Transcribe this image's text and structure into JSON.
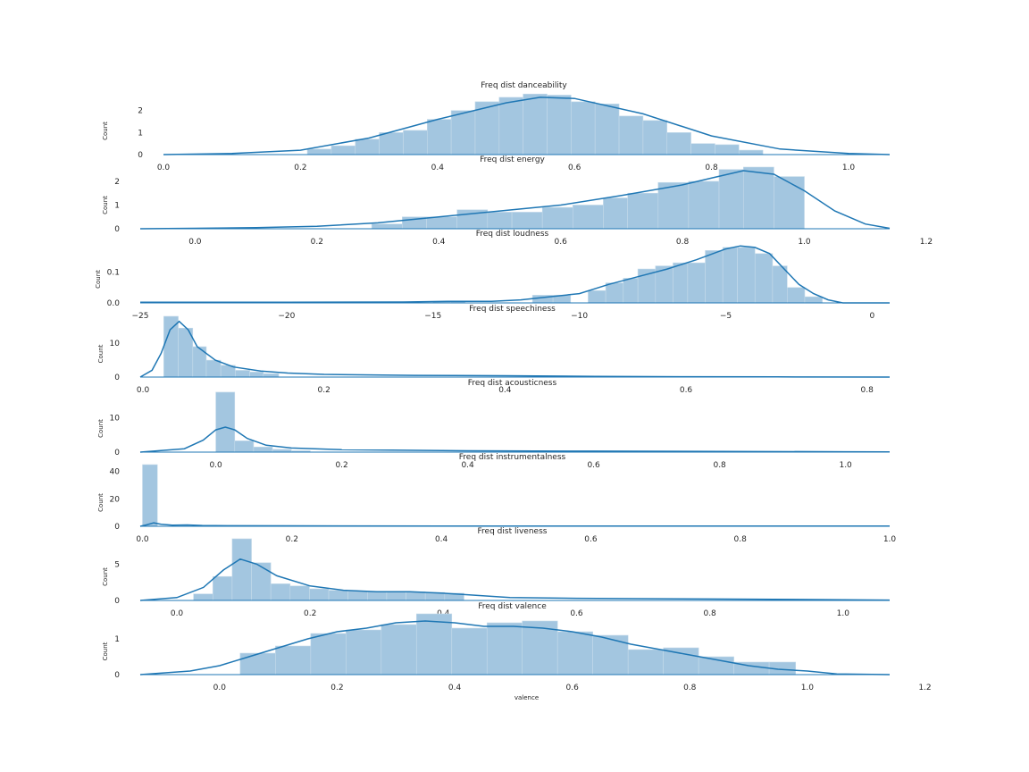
{
  "colors": {
    "bar": "#a3c6e0",
    "bar_edge": "#c6dbea",
    "kde": "#1f77b4",
    "text": "#262626",
    "background": "#ffffff"
  },
  "chart_data": [
    {
      "type": "histogram",
      "title": "Freq dist danceability",
      "ylabel": "Count",
      "xlim": [
        0.0,
        1.06
      ],
      "ylim": [
        0,
        2.8
      ],
      "xticks": [
        0.0,
        0.2,
        0.4,
        0.6,
        0.8,
        1.0
      ],
      "xtick_labels": [
        "0.0",
        "0.2",
        "0.4",
        "0.6",
        "0.8",
        "1.0"
      ],
      "yticks": [
        0,
        1,
        2
      ],
      "ytick_labels": [
        "0",
        "1",
        "2"
      ],
      "bins": [
        [
          0.21,
          0.245,
          0.25
        ],
        [
          0.245,
          0.28,
          0.4
        ],
        [
          0.28,
          0.315,
          0.7
        ],
        [
          0.315,
          0.35,
          1.0
        ],
        [
          0.35,
          0.385,
          1.1
        ],
        [
          0.385,
          0.42,
          1.6
        ],
        [
          0.42,
          0.455,
          2.0
        ],
        [
          0.455,
          0.49,
          2.4
        ],
        [
          0.49,
          0.525,
          2.6
        ],
        [
          0.525,
          0.56,
          2.75
        ],
        [
          0.56,
          0.595,
          2.7
        ],
        [
          0.595,
          0.63,
          2.4
        ],
        [
          0.63,
          0.665,
          2.3
        ],
        [
          0.665,
          0.7,
          1.75
        ],
        [
          0.7,
          0.735,
          1.55
        ],
        [
          0.735,
          0.77,
          1.0
        ],
        [
          0.77,
          0.805,
          0.5
        ],
        [
          0.805,
          0.84,
          0.45
        ],
        [
          0.84,
          0.875,
          0.2
        ]
      ],
      "kde": [
        [
          0.0,
          0.0
        ],
        [
          0.1,
          0.05
        ],
        [
          0.2,
          0.2
        ],
        [
          0.3,
          0.75
        ],
        [
          0.4,
          1.6
        ],
        [
          0.5,
          2.35
        ],
        [
          0.55,
          2.6
        ],
        [
          0.6,
          2.55
        ],
        [
          0.7,
          1.85
        ],
        [
          0.8,
          0.85
        ],
        [
          0.9,
          0.25
        ],
        [
          1.0,
          0.05
        ],
        [
          1.06,
          0.0
        ]
      ]
    },
    {
      "type": "histogram",
      "title": "Freq dist energy",
      "ylabel": "Count",
      "xlim": [
        -0.09,
        1.14
      ],
      "ylim": [
        0,
        2.6
      ],
      "xticks": [
        0.0,
        0.2,
        0.4,
        0.6,
        0.8,
        1.0,
        1.2
      ],
      "xtick_labels": [
        "0.0",
        "0.2",
        "0.4",
        "0.6",
        "0.8",
        "1.0",
        "1.2"
      ],
      "yticks": [
        0,
        1,
        2
      ],
      "ytick_labels": [
        "0",
        "1",
        "2"
      ],
      "bins": [
        [
          0.29,
          0.34,
          0.2
        ],
        [
          0.34,
          0.38,
          0.5
        ],
        [
          0.38,
          0.43,
          0.5
        ],
        [
          0.43,
          0.48,
          0.8
        ],
        [
          0.48,
          0.52,
          0.7
        ],
        [
          0.52,
          0.57,
          0.7
        ],
        [
          0.57,
          0.62,
          0.9
        ],
        [
          0.62,
          0.67,
          1.0
        ],
        [
          0.67,
          0.71,
          1.3
        ],
        [
          0.71,
          0.76,
          1.5
        ],
        [
          0.76,
          0.81,
          1.95
        ],
        [
          0.81,
          0.86,
          2.0
        ],
        [
          0.86,
          0.9,
          2.5
        ],
        [
          0.9,
          0.95,
          2.6
        ],
        [
          0.95,
          1.0,
          2.2
        ]
      ],
      "kde": [
        [
          -0.09,
          0.0
        ],
        [
          0.0,
          0.02
        ],
        [
          0.1,
          0.05
        ],
        [
          0.2,
          0.1
        ],
        [
          0.3,
          0.25
        ],
        [
          0.4,
          0.5
        ],
        [
          0.5,
          0.75
        ],
        [
          0.6,
          1.0
        ],
        [
          0.7,
          1.4
        ],
        [
          0.8,
          1.85
        ],
        [
          0.85,
          2.15
        ],
        [
          0.9,
          2.45
        ],
        [
          0.95,
          2.3
        ],
        [
          1.0,
          1.6
        ],
        [
          1.05,
          0.75
        ],
        [
          1.1,
          0.2
        ],
        [
          1.14,
          0.02
        ]
      ]
    },
    {
      "type": "histogram",
      "title": "Freq dist loudness",
      "ylabel": "Count",
      "xlim": [
        -25,
        0.6
      ],
      "ylim": [
        0,
        0.2
      ],
      "xticks": [
        -25,
        -20,
        -15,
        -10,
        -5,
        0
      ],
      "xtick_labels": [
        "−25",
        "−20",
        "−15",
        "−10",
        "−5",
        "0"
      ],
      "yticks": [
        0.0,
        0.1
      ],
      "ytick_labels": [
        "0.0",
        "0.1"
      ],
      "bins": [
        [
          -15.0,
          -14.4,
          0.005
        ],
        [
          -14.4,
          -13.9,
          0.005
        ],
        [
          -11.6,
          -10.9,
          0.025
        ],
        [
          -10.9,
          -10.3,
          0.025
        ],
        [
          -9.7,
          -9.1,
          0.04
        ],
        [
          -9.1,
          -8.5,
          0.065
        ],
        [
          -8.5,
          -8.0,
          0.08
        ],
        [
          -8.0,
          -7.4,
          0.11
        ],
        [
          -7.4,
          -6.8,
          0.12
        ],
        [
          -6.8,
          -6.3,
          0.13
        ],
        [
          -6.3,
          -5.7,
          0.13
        ],
        [
          -5.7,
          -5.1,
          0.17
        ],
        [
          -5.1,
          -4.6,
          0.18
        ],
        [
          -4.6,
          -4.0,
          0.18
        ],
        [
          -4.0,
          -3.4,
          0.16
        ],
        [
          -3.4,
          -2.9,
          0.12
        ],
        [
          -2.9,
          -2.3,
          0.05
        ],
        [
          -2.3,
          -1.7,
          0.02
        ]
      ],
      "kde": [
        [
          -25,
          0.002
        ],
        [
          -20,
          0.002
        ],
        [
          -16,
          0.003
        ],
        [
          -14.5,
          0.005
        ],
        [
          -13,
          0.005
        ],
        [
          -12,
          0.01
        ],
        [
          -11,
          0.02
        ],
        [
          -10,
          0.03
        ],
        [
          -9,
          0.06
        ],
        [
          -8,
          0.085
        ],
        [
          -7,
          0.11
        ],
        [
          -6,
          0.14
        ],
        [
          -5,
          0.175
        ],
        [
          -4.5,
          0.185
        ],
        [
          -4,
          0.18
        ],
        [
          -3.5,
          0.16
        ],
        [
          -3,
          0.11
        ],
        [
          -2.5,
          0.06
        ],
        [
          -2,
          0.03
        ],
        [
          -1.5,
          0.01
        ],
        [
          -1,
          0.0
        ],
        [
          0.6,
          0.0
        ]
      ]
    },
    {
      "type": "histogram",
      "title": "Freq dist speechiness",
      "ylabel": "Count",
      "xlim": [
        -0.003,
        0.825
      ],
      "ylim": [
        0,
        18
      ],
      "xticks": [
        0.0,
        0.2,
        0.4,
        0.6,
        0.8
      ],
      "xtick_labels": [
        "0.0",
        "0.2",
        "0.4",
        "0.6",
        "0.8"
      ],
      "yticks": [
        0,
        10
      ],
      "ytick_labels": [
        "0",
        "10"
      ],
      "bins": [
        [
          0.023,
          0.039,
          18.0
        ],
        [
          0.039,
          0.055,
          14.5
        ],
        [
          0.055,
          0.07,
          9.0
        ],
        [
          0.07,
          0.086,
          5.0
        ],
        [
          0.086,
          0.102,
          3.5
        ],
        [
          0.102,
          0.118,
          2.0
        ],
        [
          0.118,
          0.133,
          1.5
        ],
        [
          0.133,
          0.15,
          1.0
        ]
      ],
      "kde": [
        [
          -0.003,
          0.0
        ],
        [
          0.01,
          2.0
        ],
        [
          0.02,
          7.0
        ],
        [
          0.03,
          14.0
        ],
        [
          0.04,
          16.5
        ],
        [
          0.05,
          14.0
        ],
        [
          0.06,
          9.0
        ],
        [
          0.08,
          5.0
        ],
        [
          0.1,
          3.0
        ],
        [
          0.13,
          1.8
        ],
        [
          0.16,
          1.2
        ],
        [
          0.2,
          0.8
        ],
        [
          0.3,
          0.5
        ],
        [
          0.4,
          0.4
        ],
        [
          0.5,
          0.2
        ],
        [
          0.6,
          0.1
        ],
        [
          0.7,
          0.05
        ],
        [
          0.825,
          0.0
        ]
      ]
    },
    {
      "type": "histogram",
      "title": "Freq dist acousticness",
      "ylabel": "Count",
      "xlim": [
        -0.12,
        1.07
      ],
      "ylim": [
        0,
        18
      ],
      "xticks": [
        0.0,
        0.2,
        0.4,
        0.6,
        0.8,
        1.0
      ],
      "xtick_labels": [
        "0.0",
        "0.2",
        "0.4",
        "0.6",
        "0.8",
        "1.0"
      ],
      "yticks": [
        0,
        10
      ],
      "ytick_labels": [
        "0",
        "10"
      ],
      "bins": [
        [
          0.0,
          0.03,
          17.5
        ],
        [
          0.03,
          0.06,
          3.3
        ],
        [
          0.06,
          0.09,
          1.5
        ],
        [
          0.09,
          0.12,
          0.8
        ],
        [
          0.12,
          0.15,
          0.4
        ]
      ],
      "kde": [
        [
          -0.12,
          0.0
        ],
        [
          -0.05,
          1.0
        ],
        [
          -0.02,
          3.5
        ],
        [
          0.0,
          6.5
        ],
        [
          0.015,
          7.3
        ],
        [
          0.03,
          6.5
        ],
        [
          0.05,
          4.0
        ],
        [
          0.08,
          2.0
        ],
        [
          0.12,
          1.2
        ],
        [
          0.2,
          0.7
        ],
        [
          0.4,
          0.4
        ],
        [
          0.6,
          0.3
        ],
        [
          0.8,
          0.2
        ],
        [
          1.0,
          0.1
        ],
        [
          1.07,
          0.05
        ]
      ]
    },
    {
      "type": "histogram",
      "title": "Freq dist instrumentalness",
      "ylabel": "Count",
      "xlim": [
        -0.003,
        1.0
      ],
      "ylim": [
        0,
        45
      ],
      "xticks": [
        0.0,
        0.2,
        0.4,
        0.6,
        0.8,
        1.0
      ],
      "xtick_labels": [
        "0.0",
        "0.2",
        "0.4",
        "0.6",
        "0.8",
        "1.0"
      ],
      "yticks": [
        0,
        20,
        40
      ],
      "ytick_labels": [
        "0",
        "20",
        "40"
      ],
      "bins": [
        [
          0.0,
          0.02,
          45.0
        ]
      ],
      "kde": [
        [
          -0.003,
          0.0
        ],
        [
          0.005,
          1.0
        ],
        [
          0.015,
          2.5
        ],
        [
          0.025,
          1.5
        ],
        [
          0.04,
          0.8
        ],
        [
          0.06,
          1.0
        ],
        [
          0.08,
          0.6
        ],
        [
          0.12,
          0.4
        ],
        [
          0.2,
          0.3
        ],
        [
          0.4,
          0.2
        ],
        [
          0.6,
          0.2
        ],
        [
          0.8,
          0.15
        ],
        [
          1.0,
          0.1
        ]
      ]
    },
    {
      "type": "histogram",
      "title": "Freq dist liveness",
      "ylabel": "Count",
      "xlim": [
        -0.055,
        1.07
      ],
      "ylim": [
        0,
        8.5
      ],
      "xticks": [
        0.0,
        0.2,
        0.4,
        0.6,
        0.8,
        1.0
      ],
      "xtick_labels": [
        "0.0",
        "0.2",
        "0.4",
        "0.6",
        "0.8",
        "1.0"
      ],
      "yticks": [
        0,
        5
      ],
      "ytick_labels": [
        "0",
        "5"
      ],
      "bins": [
        [
          0.025,
          0.054,
          0.9
        ],
        [
          0.054,
          0.083,
          3.3
        ],
        [
          0.083,
          0.112,
          8.5
        ],
        [
          0.112,
          0.141,
          5.2
        ],
        [
          0.141,
          0.17,
          2.3
        ],
        [
          0.17,
          0.199,
          2.0
        ],
        [
          0.199,
          0.228,
          1.6
        ],
        [
          0.228,
          0.257,
          1.4
        ],
        [
          0.257,
          0.286,
          1.3
        ],
        [
          0.286,
          0.315,
          1.2
        ],
        [
          0.315,
          0.344,
          1.2
        ],
        [
          0.344,
          0.373,
          1.2
        ],
        [
          0.373,
          0.402,
          1.1
        ],
        [
          0.402,
          0.431,
          1.0
        ]
      ],
      "kde": [
        [
          -0.055,
          0.0
        ],
        [
          0.0,
          0.4
        ],
        [
          0.04,
          1.8
        ],
        [
          0.07,
          4.2
        ],
        [
          0.095,
          5.7
        ],
        [
          0.12,
          5.0
        ],
        [
          0.15,
          3.4
        ],
        [
          0.2,
          2.0
        ],
        [
          0.25,
          1.4
        ],
        [
          0.3,
          1.2
        ],
        [
          0.35,
          1.2
        ],
        [
          0.4,
          1.0
        ],
        [
          0.5,
          0.4
        ],
        [
          0.6,
          0.3
        ],
        [
          0.8,
          0.2
        ],
        [
          1.0,
          0.1
        ],
        [
          1.07,
          0.05
        ]
      ]
    },
    {
      "type": "histogram",
      "title": "Freq dist valence",
      "ylabel": "Count",
      "xlabel": "valence",
      "xlim": [
        -0.135,
        1.14
      ],
      "ylim": [
        0,
        1.7
      ],
      "xticks": [
        0.0,
        0.2,
        0.4,
        0.6,
        0.8,
        1.0,
        1.2
      ],
      "xtick_labels": [
        "0.0",
        "0.2",
        "0.4",
        "0.6",
        "0.8",
        "1.0",
        "1.2"
      ],
      "yticks": [
        0,
        1
      ],
      "ytick_labels": [
        "0",
        "1"
      ],
      "bins": [
        [
          0.035,
          0.095,
          0.6
        ],
        [
          0.095,
          0.155,
          0.8
        ],
        [
          0.155,
          0.215,
          1.15
        ],
        [
          0.215,
          0.275,
          1.25
        ],
        [
          0.275,
          0.335,
          1.4
        ],
        [
          0.335,
          0.395,
          1.7
        ],
        [
          0.395,
          0.455,
          1.3
        ],
        [
          0.455,
          0.515,
          1.45
        ],
        [
          0.515,
          0.575,
          1.5
        ],
        [
          0.575,
          0.635,
          1.2
        ],
        [
          0.635,
          0.695,
          1.1
        ],
        [
          0.695,
          0.755,
          0.7
        ],
        [
          0.755,
          0.815,
          0.75
        ],
        [
          0.815,
          0.875,
          0.5
        ],
        [
          0.875,
          0.935,
          0.35
        ],
        [
          0.935,
          0.98,
          0.35
        ]
      ],
      "kde": [
        [
          -0.135,
          0.0
        ],
        [
          -0.05,
          0.1
        ],
        [
          0.0,
          0.25
        ],
        [
          0.05,
          0.5
        ],
        [
          0.1,
          0.75
        ],
        [
          0.15,
          1.0
        ],
        [
          0.2,
          1.2
        ],
        [
          0.25,
          1.3
        ],
        [
          0.3,
          1.45
        ],
        [
          0.35,
          1.5
        ],
        [
          0.4,
          1.45
        ],
        [
          0.45,
          1.35
        ],
        [
          0.5,
          1.35
        ],
        [
          0.55,
          1.3
        ],
        [
          0.6,
          1.2
        ],
        [
          0.65,
          1.05
        ],
        [
          0.7,
          0.85
        ],
        [
          0.75,
          0.7
        ],
        [
          0.8,
          0.55
        ],
        [
          0.85,
          0.4
        ],
        [
          0.9,
          0.25
        ],
        [
          0.95,
          0.15
        ],
        [
          1.0,
          0.1
        ],
        [
          1.05,
          0.02
        ],
        [
          1.14,
          0.0
        ]
      ]
    }
  ]
}
